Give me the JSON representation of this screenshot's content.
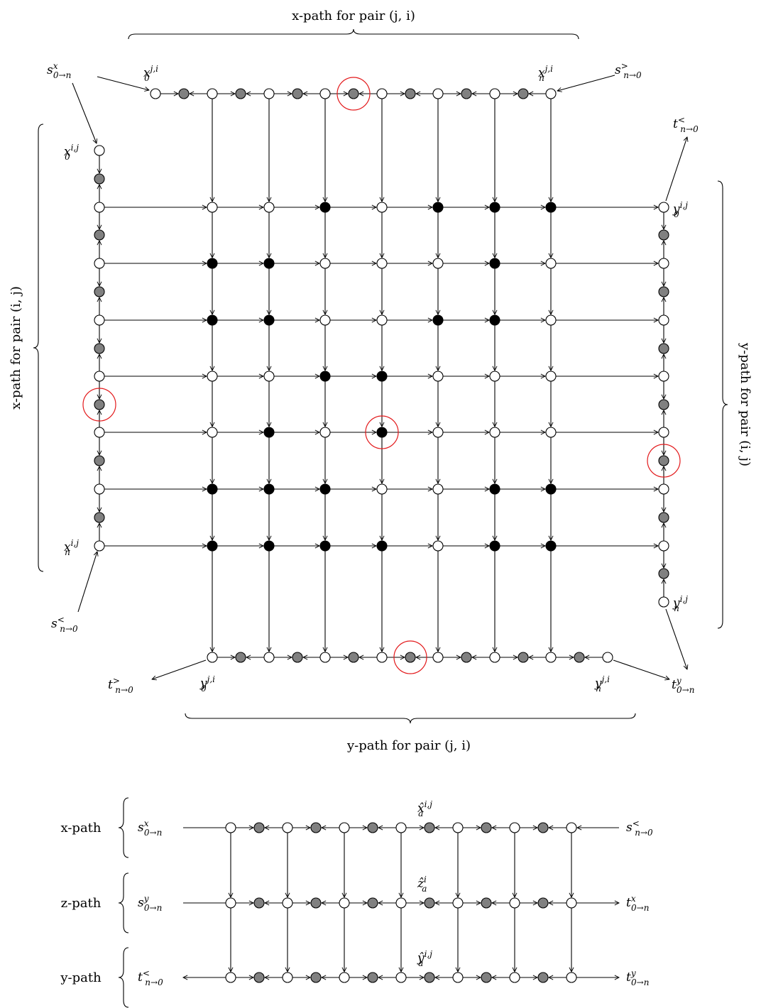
{
  "colors": {
    "stroke": "#000000",
    "white_node": "#ffffff",
    "gray_node": "#808080",
    "black_node": "#000000",
    "highlight": "#e31a1c"
  },
  "top": {
    "x_path_top": "x-path for pair (j, i)",
    "x_path_left": "x-path for pair (i, j)",
    "y_path_right": "y-path for pair (i, j)",
    "y_path_bottom": "y-path for pair (j, i)",
    "lbl_s_top": "s^x_{0→n}",
    "lbl_s_top_right": "s^>_{n→0}",
    "lbl_s_bottom_left": "s^<_{n→0}",
    "lbl_t_top_right": "t^<_{n→0}",
    "lbl_t_bottom_left": "t^>_{n→0}",
    "lbl_t_bottom_right": "t^y_{0→n}",
    "lbl_x0_ji": "x^{j,i}_0",
    "lbl_xn_ji": "x^{j,i}_n",
    "lbl_x0_ij": "x^{i,j}_0",
    "lbl_xn_ij": "x^{i,j}_n",
    "lbl_y0_ij": "y^{i,j}_0",
    "lbl_yn_ij": "y^{i,j}_n",
    "lbl_y0_ji": "y^{j,i}_0",
    "lbl_yn_ji": "y^{j,i}_n",
    "black_pattern": [
      [
        0,
        0,
        1,
        0,
        1,
        1,
        1
      ],
      [
        1,
        1,
        0,
        0,
        0,
        1,
        0
      ],
      [
        1,
        1,
        0,
        0,
        1,
        1,
        0
      ],
      [
        0,
        0,
        1,
        1,
        0,
        0,
        0
      ],
      [
        0,
        1,
        0,
        1,
        0,
        0,
        0
      ],
      [
        1,
        1,
        1,
        0,
        0,
        1,
        1
      ],
      [
        1,
        1,
        1,
        1,
        0,
        1,
        1
      ]
    ]
  },
  "bottom": {
    "row_labels": [
      "x-path",
      "z-path",
      "y-path"
    ],
    "left_labels": [
      "s^x_{0→n}",
      "s^y_{0→n}",
      "t^<_{n→0}"
    ],
    "right_labels": [
      "s^<_{n→0}",
      "t^x_{0→n}",
      "t^y_{0→n}"
    ],
    "mid_labels": [
      "x̂^{i,j}_a",
      "ẑ^i_a",
      "ŷ^{i,j}_a"
    ]
  }
}
